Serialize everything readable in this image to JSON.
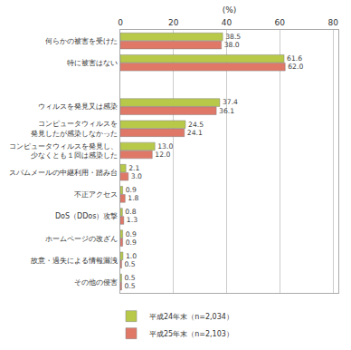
{
  "chart_data": {
    "type": "bar",
    "orientation": "horizontal",
    "categories": [
      "何らかの被害を受けた",
      "特に被害はない",
      null,
      "ウィルスを発見又は感染",
      "コンピュータウィルスを\n発見したが感染しなかった",
      "コンピュータウィルスを発見し、\n少なくとも１回は感染した",
      "スパムメールの中継利用・踏み台",
      "不正アクセス",
      "DoS（DDos）攻撃",
      "ホームページの改ざん",
      "故意・過失による情報漏洩",
      "その他の侵害"
    ],
    "series": [
      {
        "name": "平成24年末（n=2,034）",
        "color": "#b8c94a",
        "values": [
          38.5,
          61.6,
          null,
          37.4,
          24.5,
          13.0,
          2.1,
          0.9,
          0.8,
          0.9,
          1.0,
          0.5
        ],
        "value_labels": [
          "38.5",
          "61.6",
          null,
          "37.4",
          "24.5",
          "13.0",
          "2.1",
          "0.9",
          "0.8",
          "0.9",
          "1.0",
          "0.5"
        ]
      },
      {
        "name": "平成25年末（n=2,103）",
        "color": "#e07868",
        "values": [
          38.0,
          62.0,
          null,
          36.1,
          24.1,
          12.0,
          3.0,
          1.8,
          1.3,
          0.9,
          0.5,
          0.5
        ],
        "value_labels": [
          "38.0",
          "62.0",
          null,
          "36.1",
          "24.1",
          "12.0",
          "3.0",
          "1.8",
          "1.3",
          "0.9",
          "0.5",
          "0.5"
        ]
      }
    ],
    "xlim": [
      0,
      82
    ],
    "xticks": [
      0,
      20,
      40,
      60,
      80
    ],
    "xlabel": "(%)",
    "grid": true,
    "legend": "bottom",
    "data_labels": true
  }
}
